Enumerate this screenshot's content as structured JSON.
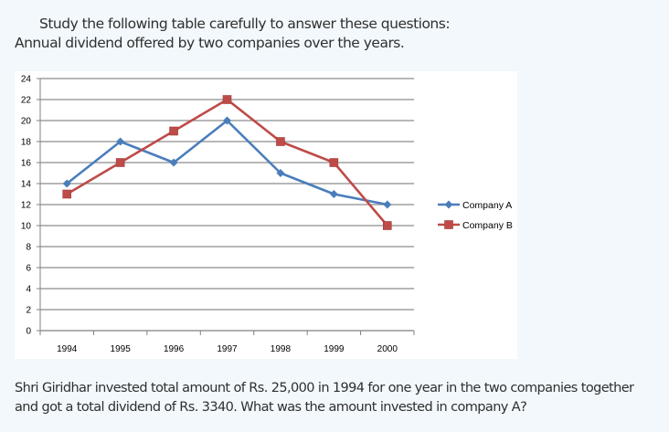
{
  "heading": {
    "line1": "Study the following table carefully to answer these questions:",
    "line2": "Annual dividend offered by two companies over the years."
  },
  "question": "Shri Giridhar invested total amount of Rs. 25,000 in 1994 for one year in the two companies together and got a total dividend of Rs. 3340. What was the amount invested in company A?",
  "colors": {
    "company_a": "#4a7ebb",
    "company_b": "#be4b48",
    "gridline": "#8c8c8c"
  },
  "chart_data": {
    "type": "line",
    "title": "",
    "xlabel": "",
    "ylabel": "",
    "categories": [
      "1994",
      "1995",
      "1996",
      "1997",
      "1998",
      "1999",
      "2000"
    ],
    "series": [
      {
        "name": "Company A",
        "marker": "diamond",
        "values": [
          14,
          18,
          16,
          20,
          15,
          13,
          12
        ]
      },
      {
        "name": "Company B",
        "marker": "square",
        "values": [
          13,
          16,
          19,
          22,
          18,
          16,
          10
        ]
      }
    ],
    "ylim": [
      0,
      24
    ],
    "yticks": [
      "0",
      "2",
      "4",
      "6",
      "8",
      "10",
      "12",
      "14",
      "16",
      "18",
      "20",
      "22",
      "24"
    ],
    "grid": true,
    "legend": "right"
  }
}
